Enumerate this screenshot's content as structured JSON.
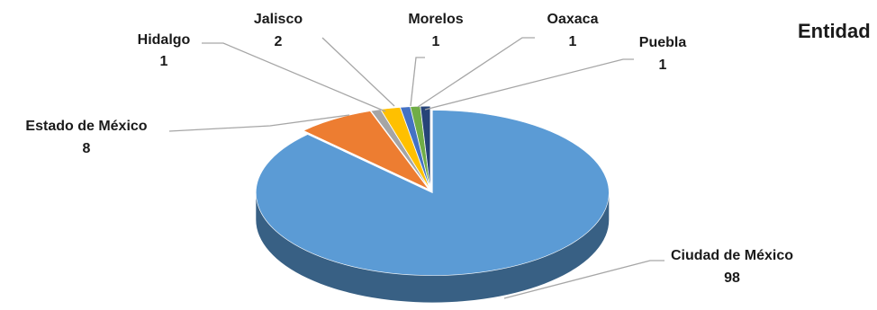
{
  "chart_data": {
    "type": "pie",
    "title": "Entidad",
    "style": "3d-exploded",
    "slices": [
      {
        "label": "Ciudad de México",
        "value": 98,
        "color": "#5b9bd5"
      },
      {
        "label": "Estado de México",
        "value": 8,
        "color": "#ed7d31"
      },
      {
        "label": "Hidalgo",
        "value": 1,
        "color": "#a5a5a5"
      },
      {
        "label": "Jalisco",
        "value": 2,
        "color": "#ffc000"
      },
      {
        "label": "Morelos",
        "value": 1,
        "color": "#4472c4"
      },
      {
        "label": "Oaxaca",
        "value": 1,
        "color": "#70ad47"
      },
      {
        "label": "Puebla",
        "value": 1,
        "color": "#264478"
      }
    ]
  }
}
